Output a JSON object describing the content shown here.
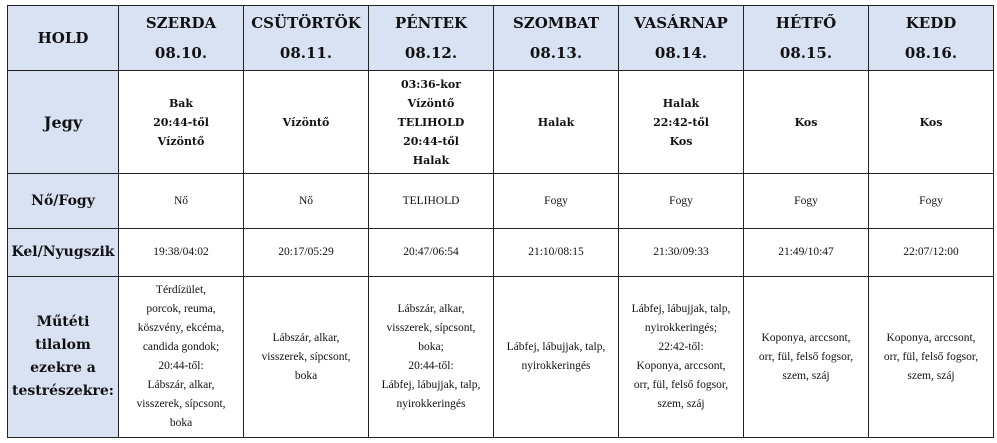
{
  "header": {
    "corner": "HOLD",
    "days": [
      {
        "name": "SZERDA",
        "date": "08.10."
      },
      {
        "name": "CSÜTÖRTÖK",
        "date": "08.11."
      },
      {
        "name": "PÉNTEK",
        "date": "08.12."
      },
      {
        "name": "SZOMBAT",
        "date": "08.13."
      },
      {
        "name": "VASÁRNAP",
        "date": "08.14."
      },
      {
        "name": "HÉTFŐ",
        "date": "08.15."
      },
      {
        "name": "KEDD",
        "date": "08.16."
      }
    ]
  },
  "header_bg": "#d9e2f3",
  "rows": [
    {
      "label": [
        "Jegy"
      ],
      "bold": true,
      "cells": [
        [
          "Bak",
          "20:44-től",
          "Vízöntő"
        ],
        [
          "Vízöntő"
        ],
        [
          "03:36-kor",
          "Vízöntő",
          "TELIHOLD",
          "20:44-től",
          "Halak"
        ],
        [
          "Halak"
        ],
        [
          "Halak",
          "22:42-től",
          "Kos"
        ],
        [
          "Kos"
        ],
        [
          "Kos"
        ]
      ]
    },
    {
      "label": [
        "Nő/Fogy"
      ],
      "bold": false,
      "cells": [
        [
          "Nő"
        ],
        [
          "Nő"
        ],
        [
          "TELIHOLD"
        ],
        [
          "Fogy"
        ],
        [
          "Fogy"
        ],
        [
          "Fogy"
        ],
        [
          "Fogy"
        ]
      ]
    },
    {
      "label": [
        "Kel/Nyugszik"
      ],
      "bold": false,
      "cells": [
        [
          "19:38/04:02"
        ],
        [
          "20:17/05:29"
        ],
        [
          "20:47/06:54"
        ],
        [
          "21:10/08:15"
        ],
        [
          "21:30/09:33"
        ],
        [
          "21:49/10:47"
        ],
        [
          "22:07/12:00"
        ]
      ]
    },
    {
      "label": [
        "Műtéti tilalom",
        "ezekre a",
        "testrészekre:"
      ],
      "bold": false,
      "cells": [
        [
          "Térdízület,",
          "porcok, reuma,",
          "köszvény, ekcéma,",
          "candida gondok;",
          "20:44-től:",
          "Lábszár, alkar,",
          "visszerek, sípcsont,",
          "boka"
        ],
        [
          "Lábszár, alkar,",
          "visszerek, sípcsont,",
          "boka"
        ],
        [
          "Lábszár, alkar,",
          "visszerek, sípcsont,",
          "boka;",
          "20:44-től:",
          "Lábfej, lábujjak, talp,",
          "nyirokkeringés"
        ],
        [
          "Lábfej, lábujjak, talp,",
          "nyirokkeringés"
        ],
        [
          "Lábfej, lábujjak, talp,",
          "nyirokkeringés;",
          "22:42-től:",
          "Koponya, arccsont,",
          "orr, fül, felső fogsor,",
          "szem, száj"
        ],
        [
          "Koponya, arccsont,",
          "orr, fül, felső fogsor,",
          "szem, száj"
        ],
        [
          "Koponya, arccsont,",
          "orr, fül, felső fogsor,",
          "szem, száj"
        ]
      ]
    }
  ]
}
